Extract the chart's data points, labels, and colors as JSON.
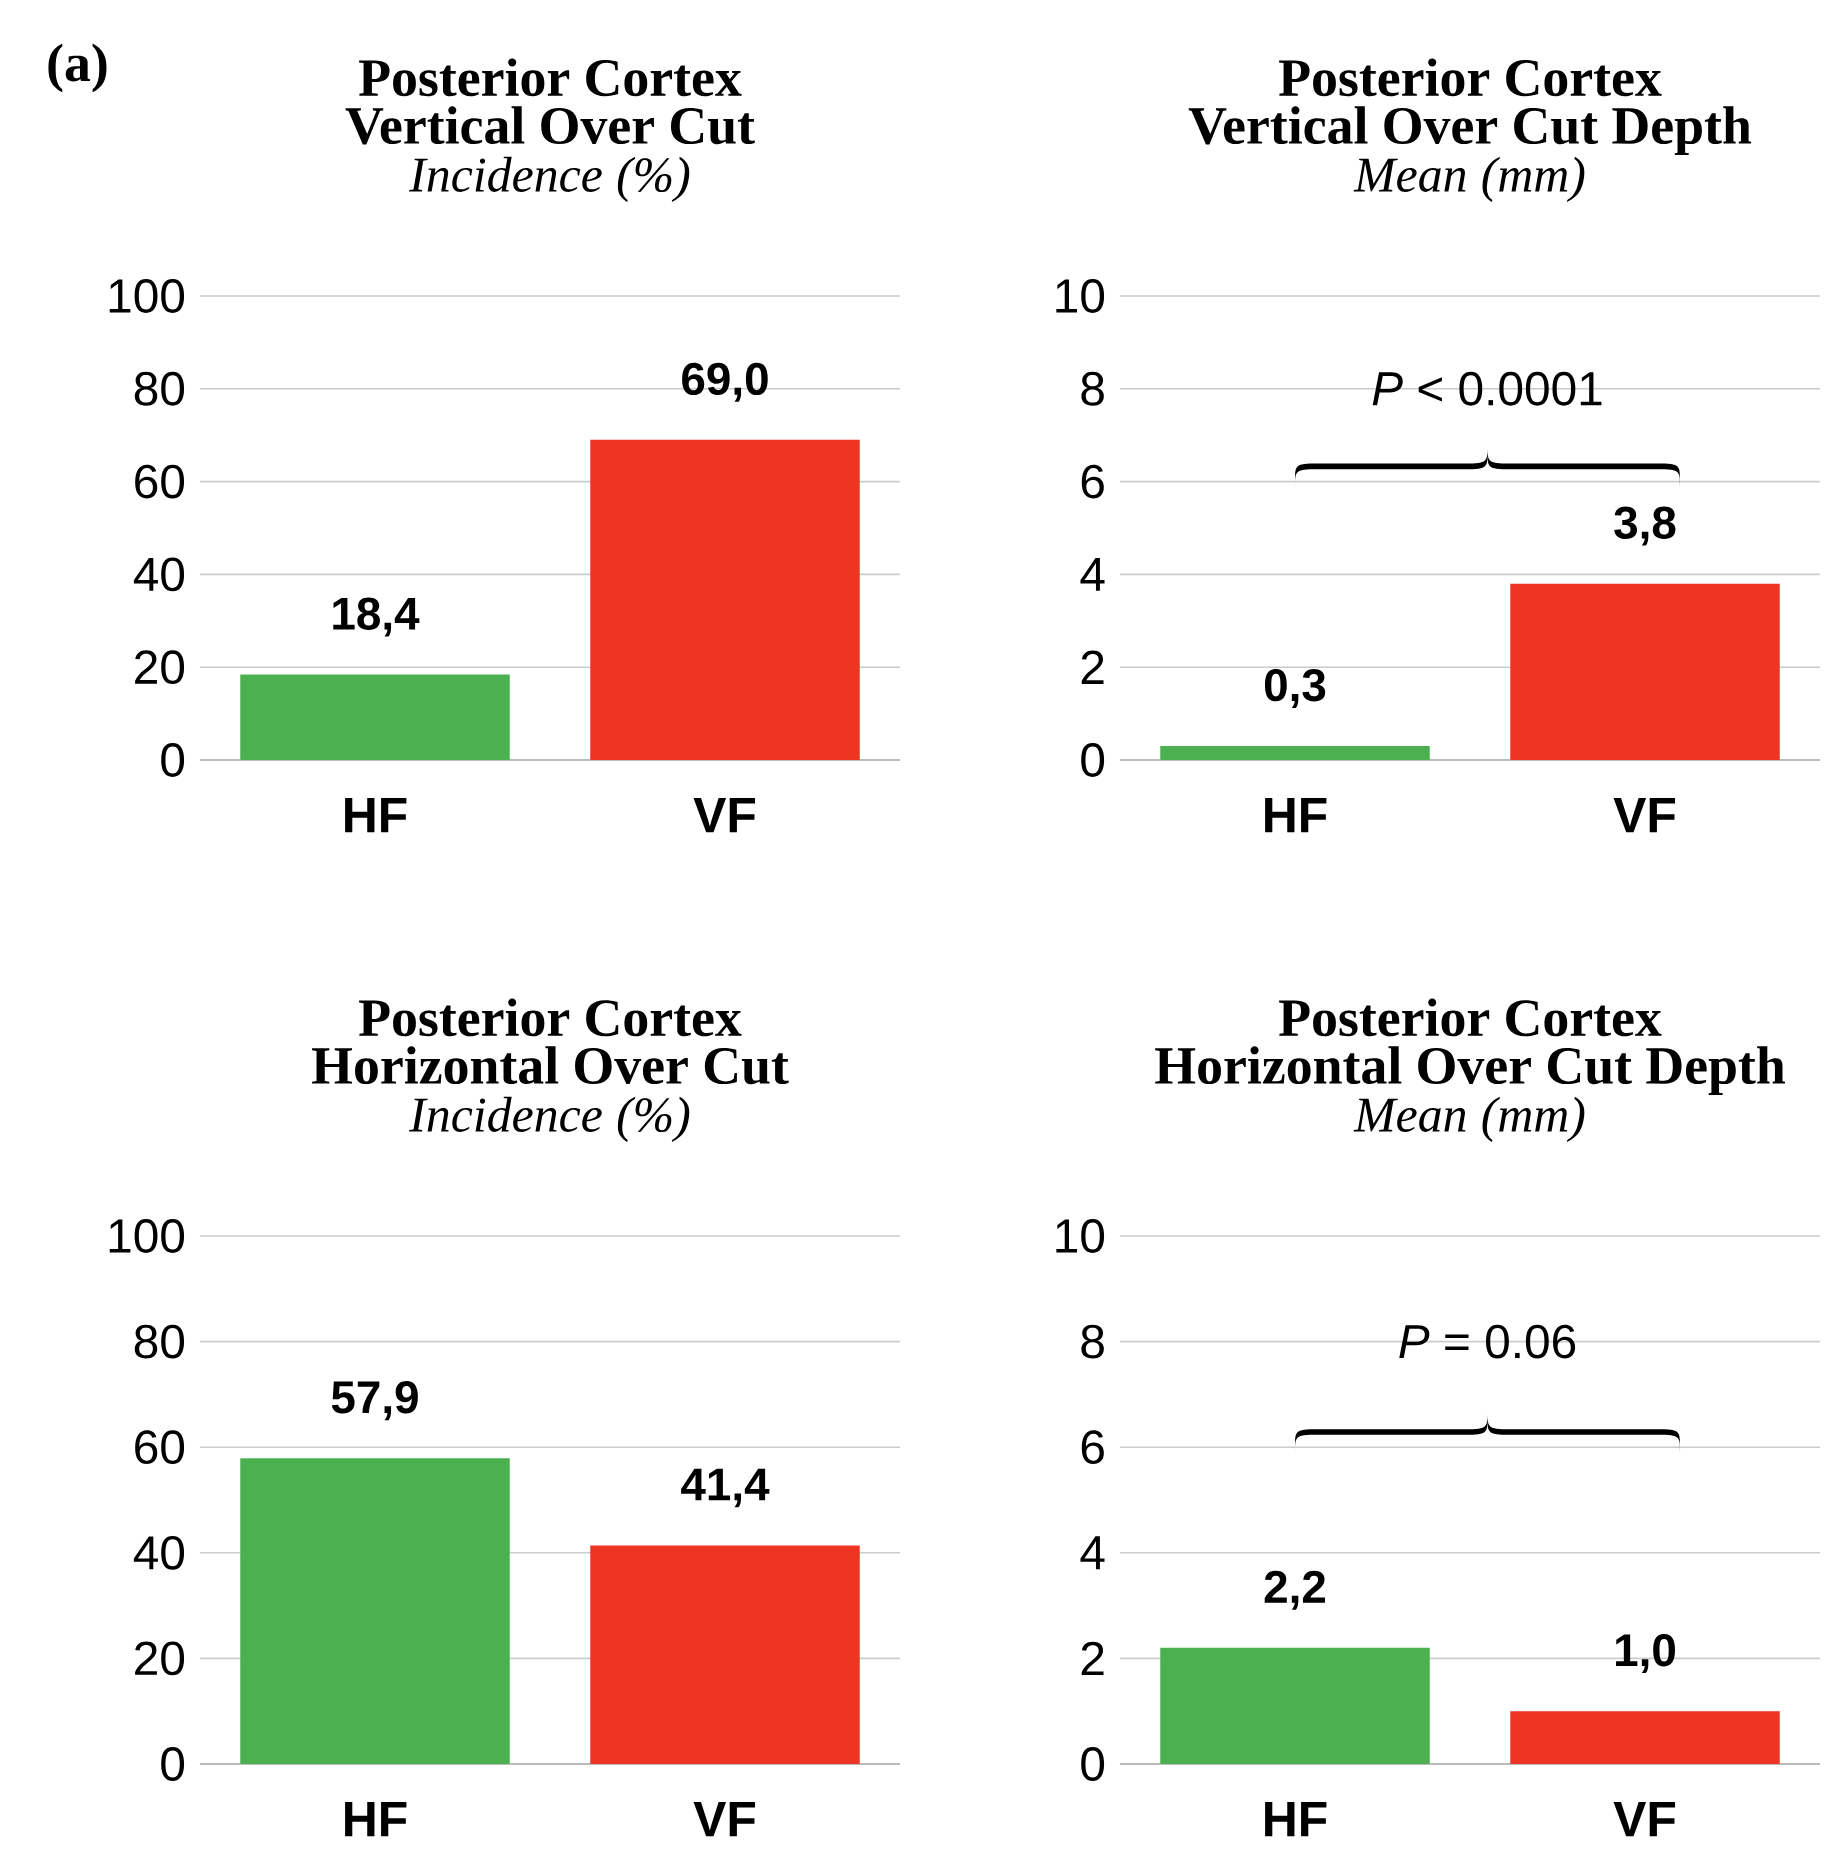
{
  "chart_data": [
    {
      "type": "bar",
      "title": "Posterior Cortex Vertical Over Cut",
      "subtitle": "Incidence (%)",
      "categories": [
        "HF",
        "VF"
      ],
      "values": [
        18.4,
        69.0
      ],
      "value_labels": [
        "18,4",
        "69,0"
      ],
      "colors": [
        "#4caf50",
        "#ee3524"
      ],
      "ylim": [
        0,
        100
      ],
      "yticks": [
        0,
        20,
        40,
        60,
        80,
        100
      ],
      "grid": "y",
      "annotations": [
        "(a)"
      ]
    },
    {
      "type": "bar",
      "title": "Posterior Cortex Vertical Over Cut Depth",
      "subtitle": "Mean (mm)",
      "categories": [
        "HF",
        "VF"
      ],
      "values": [
        0.3,
        3.8
      ],
      "value_labels": [
        "0,3",
        "3,8"
      ],
      "colors": [
        "#4caf50",
        "#ee3524"
      ],
      "ylim": [
        0,
        10
      ],
      "yticks": [
        0,
        2,
        4,
        6,
        8,
        10
      ],
      "grid": "y",
      "annotations": [
        "*P* < 0.0001"
      ]
    },
    {
      "type": "bar",
      "title": "Posterior Cortex Horizontal Over Cut",
      "subtitle": "Incidence (%)",
      "categories": [
        "HF",
        "VF"
      ],
      "values": [
        57.9,
        41.4
      ],
      "value_labels": [
        "57,9",
        "41,4"
      ],
      "colors": [
        "#4caf50",
        "#ee3524"
      ],
      "ylim": [
        0,
        100
      ],
      "yticks": [
        0,
        20,
        40,
        60,
        80,
        100
      ],
      "grid": "y"
    },
    {
      "type": "bar",
      "title": "Posterior Cortex Horizontal Over Cut Depth",
      "subtitle": "Mean (mm)",
      "categories": [
        "HF",
        "VF"
      ],
      "values": [
        2.2,
        1.0
      ],
      "value_labels": [
        "2,2",
        "1,0"
      ],
      "colors": [
        "#4caf50",
        "#ee3524"
      ],
      "ylim": [
        0,
        10
      ],
      "yticks": [
        0,
        2,
        4,
        6,
        8,
        10
      ],
      "grid": "y",
      "annotations": [
        "*P* = 0.06"
      ]
    }
  ]
}
